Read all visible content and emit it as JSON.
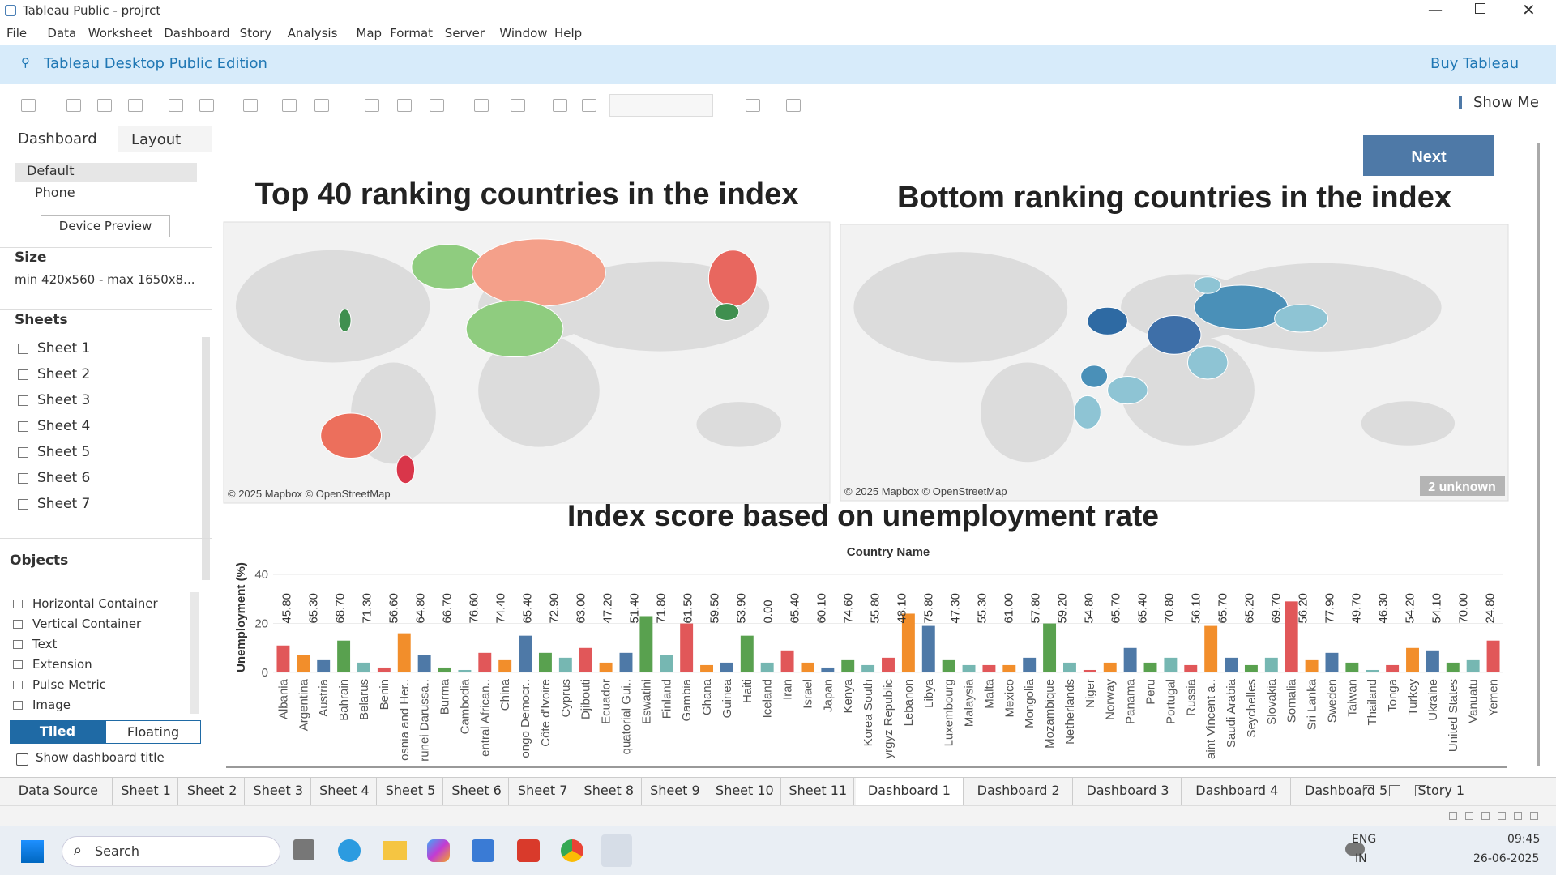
{
  "window": {
    "title": "Tableau Public - projrct"
  },
  "menu": [
    "File",
    "Data",
    "Worksheet",
    "Dashboard",
    "Story",
    "Analysis",
    "Map",
    "Format",
    "Server",
    "Window",
    "Help"
  ],
  "banner": {
    "edition": "Tableau Desktop Public Edition",
    "buy": "Buy Tableau"
  },
  "toolbar": {
    "show_me": "Show Me"
  },
  "left_panel": {
    "tabs": [
      "Dashboard",
      "Layout"
    ],
    "devices": [
      "Default",
      "Phone"
    ],
    "device_preview": "Device Preview",
    "size_heading": "Size",
    "size_value": "min 420x560 - max 1650x8...",
    "sheets_heading": "Sheets",
    "sheets": [
      "Sheet 1",
      "Sheet 2",
      "Sheet 3",
      "Sheet 4",
      "Sheet 5",
      "Sheet 6",
      "Sheet 7"
    ],
    "objects_heading": "Objects",
    "objects": [
      "Horizontal Container",
      "Vertical Container",
      "Text",
      "Extension",
      "Pulse Metric",
      "Image"
    ],
    "layout_modes": [
      "Tiled",
      "Floating"
    ],
    "show_title": "Show dashboard title"
  },
  "dashboard": {
    "next": "Next",
    "maps": [
      {
        "title": "Top 40 ranking countries in the index",
        "attribution": "© 2025 Mapbox © OpenStreetMap"
      },
      {
        "title": "Bottom ranking countries in the index",
        "attribution": "© 2025 Mapbox © OpenStreetMap",
        "unknown": "2 unknown"
      }
    ]
  },
  "chart_data": {
    "type": "bar",
    "title": "Index score based on unemployment rate",
    "x_label": "Country Name",
    "y_label": "Unemployment (%)",
    "categories": [
      "Albania",
      "Argentina",
      "Austria",
      "Bahrain",
      "Belarus",
      "Benin",
      "osnia and Her..",
      "runei Darussa..",
      "Burma",
      "Cambodia",
      "entral African..",
      "China",
      "ongo Democr..",
      "Côte d'Ivoire",
      "Cyprus",
      "Djibouti",
      "Ecuador",
      "quatorial Gui..",
      "Eswatini",
      "Finland",
      "Gambia",
      "Ghana",
      "Guinea",
      "Haiti",
      "Iceland",
      "Iran",
      "Israel",
      "Japan",
      "Kenya",
      "Korea South",
      "yrgyz Republic",
      "Lebanon",
      "Libya",
      "Luxembourg",
      "Malaysia",
      "Malta",
      "Mexico",
      "Mongolia",
      "Mozambique",
      "Netherlands",
      "Niger",
      "Norway",
      "Panama",
      "Peru",
      "Portugal",
      "Russia",
      "aint Vincent a..",
      "Saudi Arabia",
      "Seychelles",
      "Slovakia",
      "Somalia",
      "Sri Lanka",
      "Sweden",
      "Taiwan",
      "Thailand",
      "Tonga",
      "Turkey",
      "Ukraine",
      "United States",
      "Vanuatu",
      "Yemen"
    ],
    "values": [
      11,
      7,
      5,
      13,
      4,
      2,
      16,
      7,
      2,
      1,
      8,
      5,
      15,
      8,
      6,
      10,
      4,
      8,
      23,
      7,
      20,
      3,
      4,
      15,
      4,
      9,
      4,
      2,
      5,
      3,
      6,
      24,
      19,
      5,
      3,
      3,
      3,
      6,
      20,
      4,
      1,
      4,
      10,
      4,
      6,
      3,
      19,
      6,
      3,
      6,
      29,
      5,
      8,
      4,
      1,
      3,
      10,
      9,
      4,
      5,
      13
    ],
    "palette": [
      "#e15759",
      "#f28e2b",
      "#4e79a7",
      "#59a14f",
      "#76b7b2"
    ],
    "score_labels": [
      "45.80",
      "65.30",
      "68.70",
      "71.30",
      "56.60",
      "64.80",
      "66.70",
      "76.60",
      "74.40",
      "65.40",
      "72.90",
      "63.00",
      "47.20",
      "51.40",
      "71.80",
      "61.50",
      "59.50",
      "53.90",
      "0.00",
      "65.40",
      "60.10",
      "74.60",
      "55.80",
      "48.10",
      "75.80",
      "47.30",
      "55.30",
      "61.00",
      "57.80",
      "59.20",
      "54.80",
      "65.70",
      "65.40",
      "70.80",
      "56.10",
      "65.70",
      "65.20",
      "69.70",
      "56.20",
      "77.90",
      "49.70",
      "46.30",
      "54.20",
      "54.10",
      "70.00",
      "24.80"
    ],
    "ylim": [
      0,
      45
    ],
    "yticks": [
      0,
      20,
      40
    ],
    "grid": true
  },
  "tabs": [
    "Data Source",
    "Sheet 1",
    "Sheet 2",
    "Sheet 3",
    "Sheet 4",
    "Sheet 5",
    "Sheet 6",
    "Sheet 7",
    "Sheet 8",
    "Sheet 9",
    "Sheet 10",
    "Sheet 11",
    "Dashboard 1",
    "Dashboard 2",
    "Dashboard 3",
    "Dashboard 4",
    "Dashboard 5",
    "Story 1"
  ],
  "active_tab": "Dashboard 1",
  "taskbar": {
    "search": "Search",
    "lang": [
      "ENG",
      "IN"
    ],
    "time": "09:45",
    "date": "26-06-2025"
  }
}
